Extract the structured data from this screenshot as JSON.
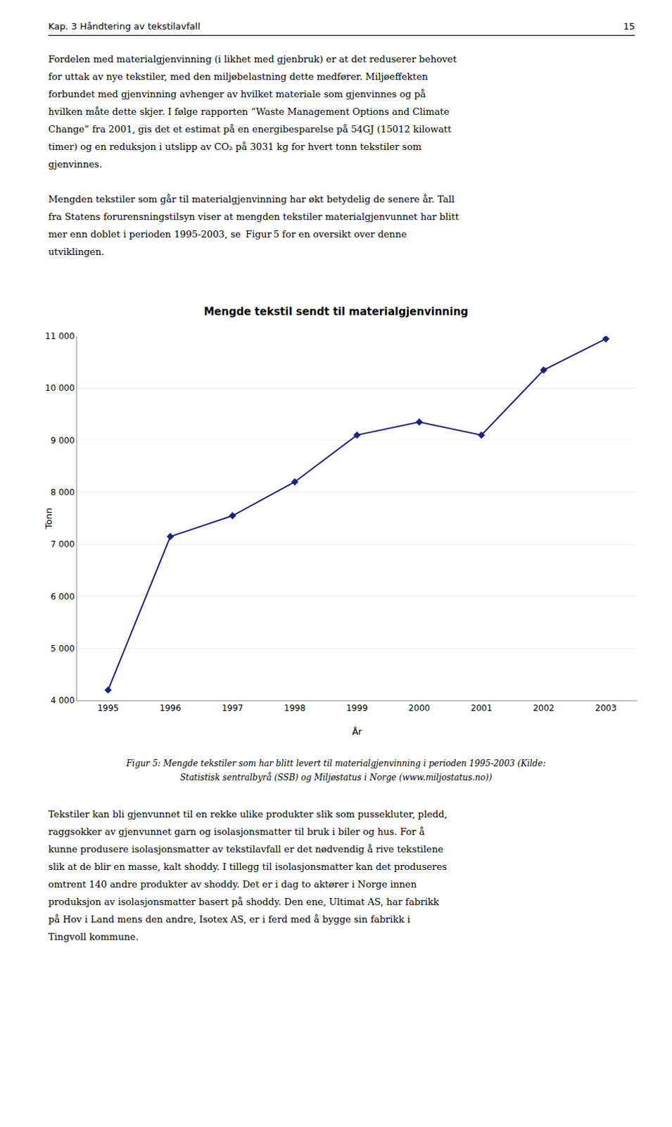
{
  "header_left": "Kap. 3  Håndtering av tekstilavfall",
  "header_right": "15",
  "paragraphs_before": [
    [
      "Fordelen med materialgjenvinning (i likhet med gjenbruk) er at det reduserer behovet",
      "for uttak av nye tekstiler, med den miljøbelastning dette medfører. Miljøeffekten",
      "forbundet med gjenvinning avhenger av hvilket materiale som gjenvinnes og på",
      "hvilken måte dette skjer. I følge rapporten “Waste Management Options and Climate",
      "Change” fra 2001, gis det et estimat på en energibesparelse på 54GJ (15012 kilowatt",
      "timer) og en reduksjon i utslipp av CO₂ på 3031 kg for hvert tonn tekstiler som",
      "gjenvinnes."
    ],
    [
      "Mengden tekstiler som går til materialgjenvinning har økt betydelig de senere år. Tall",
      "fra Statens forurensningstilsyn viser at mengden tekstiler materialgjenvunnet har blitt",
      "mer enn doblet i perioden 1995-2003, se  Figur 5 for en oversikt over denne",
      "utviklingen."
    ]
  ],
  "caption": [
    "Figur 5: Mengde tekstiler som har blitt levert til materialgjenvinning i perioden 1995-2003 (Kilde:",
    "Statistisk sentralbyrå (SSB) og Miljøstatus i Norge (www.miljostatus.no))"
  ],
  "paragraphs_after": [
    [
      "Tekstiler kan bli gjenvunnet til en rekke ulike produkter slik som pussekluter, pledd,",
      "raggsokker av gjenvunnet garn og isolasjonsmatter til bruk i biler og hus. For å",
      "kunne produsere isolasjonsmatter av tekstilavfall er det nødvendig å rive tekstilene",
      "slik at de blir en masse, kalt shoddy. I tillegg til isolasjonsmatter kan det produseres",
      "omtrent 140 andre produkter av shoddy. Det er i dag to aktører i Norge innen",
      "produksjon av isolasjonsmatter basert på shoddy. Den ene, Ultimat AS, har fabrikk",
      "på Hov i Land mens den andre, Isotex AS, er i ferd med å bygge sin fabrikk i",
      "Tingvoll kommune."
    ]
  ],
  "chart_data": {
    "type": "line",
    "title": "Mengde tekstil sendt til materialgjenvinning",
    "xlabel": "År",
    "ylabel": "Tonn",
    "x": [
      1995,
      1996,
      1997,
      1998,
      1999,
      2000,
      2001,
      2002,
      2003
    ],
    "values": [
      4200,
      7150,
      7550,
      8200,
      9100,
      9350,
      9100,
      10350,
      10950
    ],
    "color": "#1a237e",
    "marker": "diamond",
    "xlim": [
      1994.5,
      2003.5
    ],
    "xticks": [
      1995,
      1996,
      1997,
      1998,
      1999,
      2000,
      2001,
      2002,
      2003
    ],
    "ylim": [
      4000,
      11000
    ],
    "yticks": [
      {
        "value": 4000,
        "label": "4 000"
      },
      {
        "value": 5000,
        "label": "5 000"
      },
      {
        "value": 6000,
        "label": "6 000"
      },
      {
        "value": 7000,
        "label": "7 000"
      },
      {
        "value": 8000,
        "label": "8 000"
      },
      {
        "value": 9000,
        "label": "9 000"
      },
      {
        "value": 10000,
        "label": "10 000"
      },
      {
        "value": 11000,
        "label": "11 000"
      }
    ],
    "grid": "y"
  }
}
